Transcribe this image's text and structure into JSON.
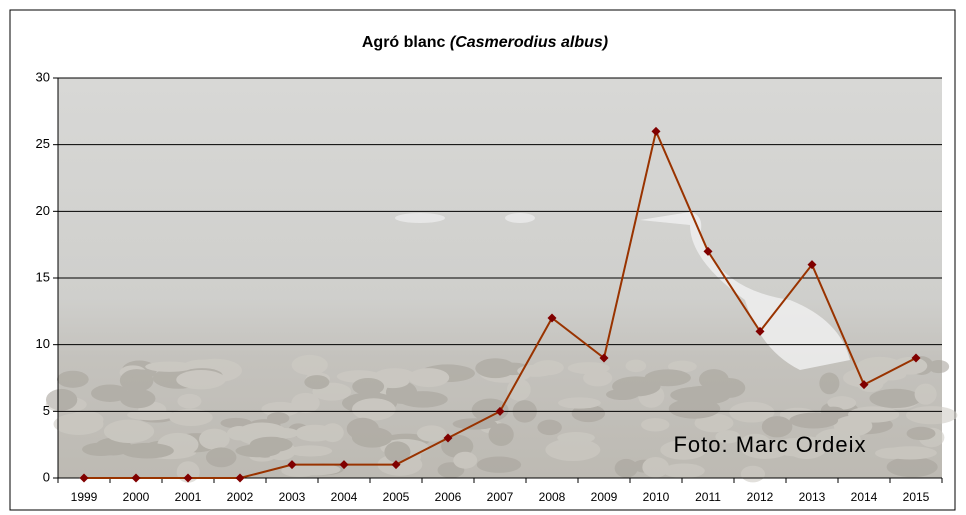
{
  "chart_data": {
    "type": "line",
    "title": "Agró blanc",
    "title_species": "(Casmerodius albus)",
    "annotation": "Foto: Marc Ordeix",
    "categories": [
      "1999",
      "2000",
      "2001",
      "2002",
      "2003",
      "2004",
      "2005",
      "2006",
      "2007",
      "2008",
      "2009",
      "2010",
      "2011",
      "2012",
      "2013",
      "2014",
      "2015"
    ],
    "series": [
      {
        "color": "#993300",
        "marker_color": "#800000",
        "values": [
          0,
          0,
          0,
          0,
          1,
          1,
          1,
          3,
          5,
          12,
          9,
          26,
          17,
          11,
          16,
          7,
          9
        ]
      }
    ],
    "ylim": [
      0,
      30
    ],
    "yticks": [
      0,
      5,
      10,
      15,
      20,
      25,
      30
    ],
    "grid": true
  }
}
